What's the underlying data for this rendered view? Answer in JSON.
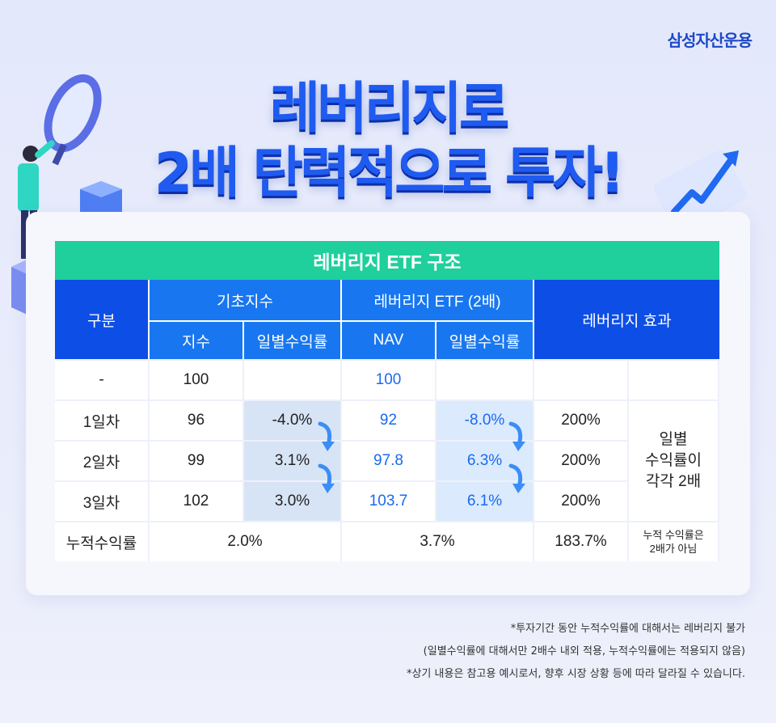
{
  "brand": "삼성자산운용",
  "headline": {
    "line1": "레버리지로",
    "line2": "2배 탄력적으로 투자!"
  },
  "table": {
    "title": "레버리지 ETF 구조",
    "header": {
      "category": "구분",
      "base_index": "기초지수",
      "leverage_etf": "레버리지 ETF (2배)",
      "leverage_effect": "레버리지 효과",
      "index": "지수",
      "daily_return": "일별수익률",
      "nav": "NAV",
      "daily_return_etf": "일별수익률"
    },
    "rows": [
      {
        "label": "-",
        "index": "100",
        "index_ret": "",
        "nav": "100",
        "nav_ret": "",
        "effect": ""
      },
      {
        "label": "1일차",
        "index": "96",
        "index_ret": "-4.0%",
        "nav": "92",
        "nav_ret": "-8.0%",
        "effect": "200%"
      },
      {
        "label": "2일차",
        "index": "99",
        "index_ret": "3.1%",
        "nav": "97.8",
        "nav_ret": "6.3%",
        "effect": "200%"
      },
      {
        "label": "3일차",
        "index": "102",
        "index_ret": "3.0%",
        "nav": "103.7",
        "nav_ret": "6.1%",
        "effect": "200%"
      }
    ],
    "daily_note": [
      "일별",
      "수익률이",
      "각각 2배"
    ],
    "cumulative": {
      "label": "누적수익률",
      "index": "2.0%",
      "etf": "3.7%",
      "effect": "183.7%",
      "note": [
        "누적 수익률은",
        "2배가 아님"
      ]
    }
  },
  "footnotes": [
    "*투자기간 동안 누적수익률에 대해서는 레버리지 불가",
    "(일별수익률에 대해서만 2배수 내외 적용, 누적수익률에는 적용되지 않음)",
    "*상기 내용은 참고용 예시로서, 향후 시장 상황 등에 따라 달라질 수 있습니다."
  ],
  "colors": {
    "brand": "#1d49c7",
    "headline": "#1f5bf0",
    "title_bar": "#1fcf9c",
    "header_dark": "#0d4ee6",
    "header_mid": "#1877f0",
    "etf_value": "#1a6af0"
  }
}
